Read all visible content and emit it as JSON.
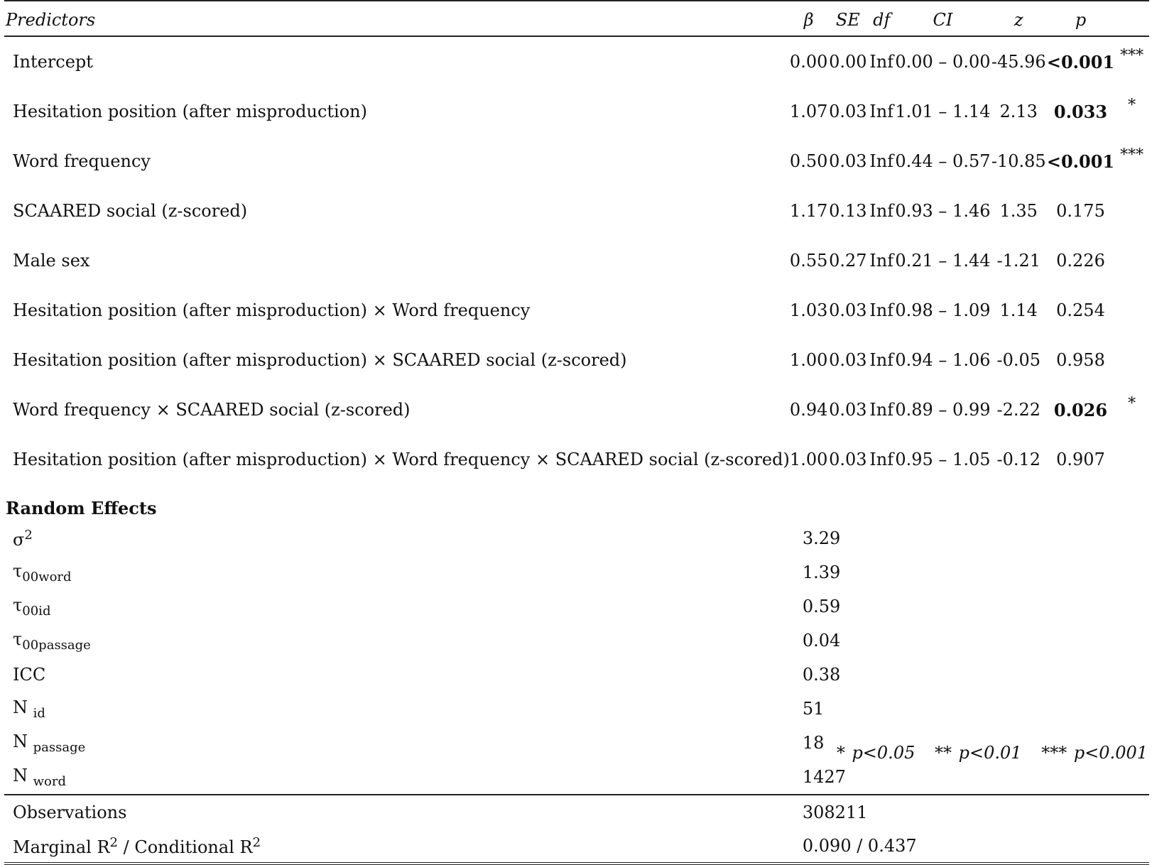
{
  "header": {
    "predictors": "Predictors",
    "beta": "β",
    "se": "SE",
    "df": "df",
    "ci": "CI",
    "z": "z",
    "p": "p"
  },
  "fixed_effects": [
    {
      "label": "Intercept",
      "beta": "0.00",
      "se": "0.00",
      "df": "Inf",
      "ci": "0.00 – 0.00",
      "z": "-45.96",
      "p": "<0.001",
      "stars": "***",
      "bold": true
    },
    {
      "label": "Hesitation position (after misproduction)",
      "beta": "1.07",
      "se": "0.03",
      "df": "Inf",
      "ci": "1.01 – 1.14",
      "z": "2.13",
      "p": "0.033",
      "stars": "*",
      "bold": true
    },
    {
      "label": "Word frequency",
      "beta": "0.50",
      "se": "0.03",
      "df": "Inf",
      "ci": "0.44 – 0.57",
      "z": "-10.85",
      "p": "<0.001",
      "stars": "***",
      "bold": true
    },
    {
      "label": "SCAARED social (z-scored)",
      "beta": "1.17",
      "se": "0.13",
      "df": "Inf",
      "ci": "0.93 – 1.46",
      "z": "1.35",
      "p": "0.175",
      "stars": "",
      "bold": false
    },
    {
      "label": "Male sex",
      "beta": "0.55",
      "se": "0.27",
      "df": "Inf",
      "ci": "0.21 – 1.44",
      "z": "-1.21",
      "p": "0.226",
      "stars": "",
      "bold": false
    },
    {
      "label": "Hesitation position (after misproduction) × Word frequency",
      "beta": "1.03",
      "se": "0.03",
      "df": "Inf",
      "ci": "0.98 – 1.09",
      "z": "1.14",
      "p": "0.254",
      "stars": "",
      "bold": false
    },
    {
      "label": "Hesitation position (after misproduction) × SCAARED social (z-scored)",
      "beta": "1.00",
      "se": "0.03",
      "df": "Inf",
      "ci": "0.94 – 1.06",
      "z": "-0.05",
      "p": "0.958",
      "stars": "",
      "bold": false
    },
    {
      "label": "Word frequency × SCAARED social (z-scored)",
      "beta": "0.94",
      "se": "0.03",
      "df": "Inf",
      "ci": "0.89 – 0.99",
      "z": "-2.22",
      "p": "0.026",
      "stars": "*",
      "bold": true
    },
    {
      "label": "Hesitation position (after misproduction) × Word frequency × SCAARED social (z-scored)",
      "beta": "1.00",
      "se": "0.03",
      "df": "Inf",
      "ci": "0.95 – 1.05",
      "z": "-0.12",
      "p": "0.907",
      "stars": "",
      "bold": false
    }
  ],
  "random_effects": {
    "title": "Random Effects",
    "sigma2": {
      "symbol": "σ",
      "sup": "2",
      "value": "3.29"
    },
    "tau_word": {
      "symbol": "τ",
      "sub": "00word",
      "value": "1.39"
    },
    "tau_id": {
      "symbol": "τ",
      "sub": "00id",
      "value": "0.59"
    },
    "tau_passage": {
      "symbol": "τ",
      "sub": "00passage",
      "value": "0.04"
    },
    "icc": {
      "label": "ICC",
      "value": "0.38"
    },
    "n_id": {
      "symbol": "N",
      "sub": "id",
      "value": "51"
    },
    "n_passage": {
      "symbol": "N",
      "sub": "passage",
      "value": "18"
    },
    "n_word": {
      "symbol": "N",
      "sub": "word",
      "value": "1427"
    }
  },
  "summary": {
    "observations_label": "Observations",
    "observations_value": "308211",
    "r2_label_a": "Marginal R",
    "r2_sup_a": "2",
    "r2_label_b": " / Conditional R",
    "r2_sup_b": "2",
    "r2_value": "0.090 / 0.437"
  },
  "footnote": {
    "p05": "* p<0.05",
    "p01": "** p<0.01",
    "p001": "*** p<0.001"
  }
}
